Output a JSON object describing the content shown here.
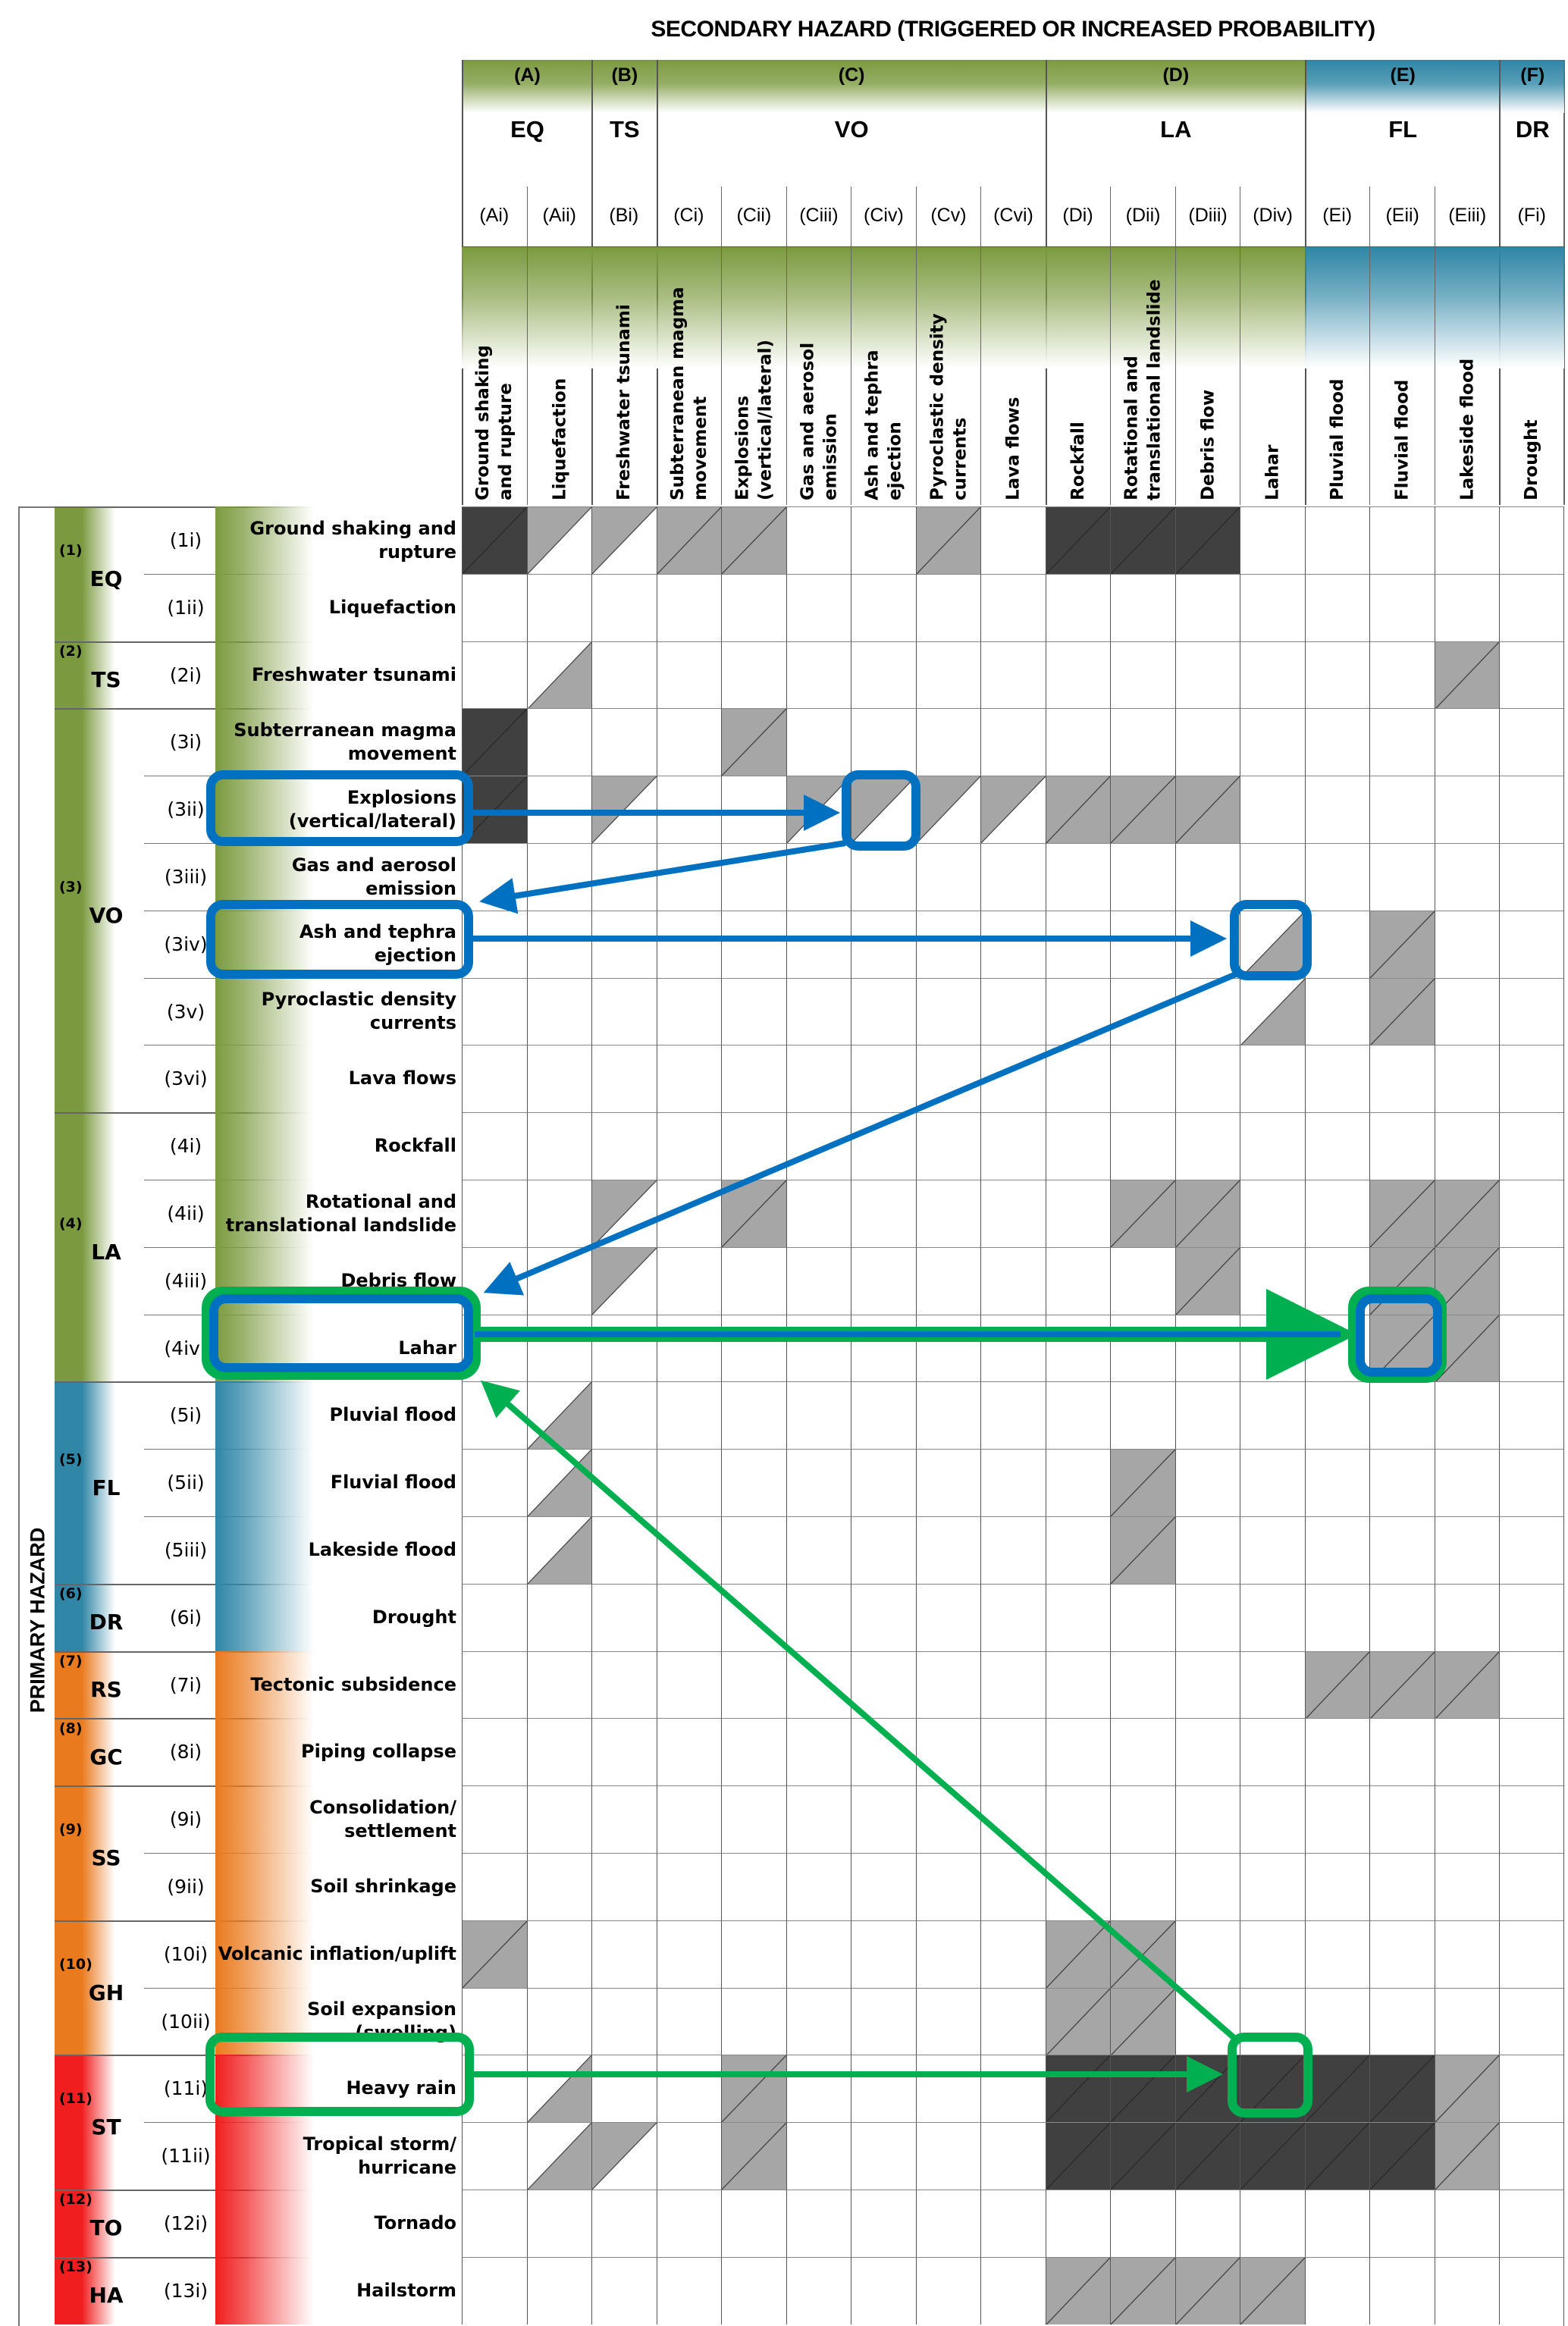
{
  "title": "SECONDARY HAZARD (TRIGGERED OR INCREASED PROBABILITY)",
  "primary_label": "PRIMARY HAZARD",
  "colors": {
    "green": "#7b9a3f",
    "blue": "#2f86a6",
    "orange": "#ea7a1e",
    "red": "#f01e1e",
    "grey": "#a6a6a6",
    "dark": "#404040",
    "highlight_blue": "#0070c0",
    "highlight_green": "#00b050"
  },
  "cell_legend": {
    "0": "none",
    "G": "grey both halves",
    "D": "dark both halves",
    "U": "grey upper-left half",
    "L": "grey lower-right half"
  },
  "secondary_groups": [
    {
      "code": "(A)",
      "abbr": "EQ",
      "color": "green",
      "cols": [
        {
          "id": "(Ai)",
          "name": "Ground shaking\nand rupture"
        },
        {
          "id": "(Aii)",
          "name": "Liquefaction"
        }
      ]
    },
    {
      "code": "(B)",
      "abbr": "TS",
      "color": "green",
      "cols": [
        {
          "id": "(Bi)",
          "name": "Freshwater tsunami"
        }
      ]
    },
    {
      "code": "(C)",
      "abbr": "VO",
      "color": "green",
      "cols": [
        {
          "id": "(Ci)",
          "name": "Subterranean magma\nmovement"
        },
        {
          "id": "(Cii)",
          "name": "Explosions\n(vertical/lateral)"
        },
        {
          "id": "(Ciii)",
          "name": "Gas and aerosol\nemission"
        },
        {
          "id": "(Civ)",
          "name": "Ash and tephra\nejection"
        },
        {
          "id": "(Cv)",
          "name": "Pyroclastic density\ncurrents"
        },
        {
          "id": "(Cvi)",
          "name": "Lava flows"
        }
      ]
    },
    {
      "code": "(D)",
      "abbr": "LA",
      "color": "green",
      "cols": [
        {
          "id": "(Di)",
          "name": "Rockfall"
        },
        {
          "id": "(Dii)",
          "name": "Rotational and\ntranslational landslide"
        },
        {
          "id": "(Diii)",
          "name": "Debris flow"
        },
        {
          "id": "(Div)",
          "name": "Lahar"
        }
      ]
    },
    {
      "code": "(E)",
      "abbr": "FL",
      "color": "blue",
      "cols": [
        {
          "id": "(Ei)",
          "name": "Pluvial flood"
        },
        {
          "id": "(Eii)",
          "name": "Fluvial flood"
        },
        {
          "id": "(Eiii)",
          "name": "Lakeside flood"
        }
      ]
    },
    {
      "code": "(F)",
      "abbr": "DR",
      "color": "blue",
      "cols": [
        {
          "id": "(Fi)",
          "name": "Drought"
        }
      ]
    }
  ],
  "primary_groups": [
    {
      "num": "(1)",
      "abbr": "EQ",
      "color": "green",
      "rows": [
        {
          "id": "(1i)",
          "label": "Ground shaking and\nrupture",
          "cells": "DUUGG00G0DDD00000"
        },
        {
          "id": "(1ii)",
          "label": "Liquefaction",
          "cells": "00000000000000000"
        }
      ]
    },
    {
      "num": "(2)",
      "abbr": "TS",
      "color": "green",
      "rows": [
        {
          "id": "(2i)",
          "label": "Freshwater tsunami",
          "cells": "0L0000000000000G0"
        }
      ]
    },
    {
      "num": "(3)",
      "abbr": "VO",
      "color": "green",
      "rows": [
        {
          "id": "(3i)",
          "label": "Subterranean magma\nmovement",
          "cells": "D000G000000000000"
        },
        {
          "id": "(3ii)",
          "label": "Explosions\n(vertical/lateral)",
          "cells": "D0U00UUUUGGG00000"
        },
        {
          "id": "(3iii)",
          "label": "Gas and aerosol\nemission",
          "cells": "00000000000000000"
        },
        {
          "id": "(3iv)",
          "label": "Ash and tephra ejection",
          "cells": "000000000000L0G00"
        },
        {
          "id": "(3v)",
          "label": "Pyroclastic density\ncurrents",
          "cells": "000000000000L0G00"
        },
        {
          "id": "(3vi)",
          "label": "Lava flows",
          "cells": "00000000000000000"
        }
      ]
    },
    {
      "num": "(4)",
      "abbr": "LA",
      "color": "green",
      "rows": [
        {
          "id": "(4i)",
          "label": "Rockfall",
          "cells": "00000000000000000"
        },
        {
          "id": "(4ii)",
          "label": "Rotational and\ntranslational landslide",
          "cells": "00U0G00000GG00GG0"
        },
        {
          "id": "(4iii)",
          "label": "Debris flow",
          "cells": "00U00000000G00GG0"
        },
        {
          "id": "(4iv)",
          "label": "Lahar",
          "cells": "00000000000000GG0"
        }
      ]
    },
    {
      "num": "(5)",
      "abbr": "FL",
      "color": "blue",
      "rows": [
        {
          "id": "(5i)",
          "label": "Pluvial flood",
          "cells": "0L000000000000000"
        },
        {
          "id": "(5ii)",
          "label": "Fluvial flood",
          "cells": "0L00000000G000000"
        },
        {
          "id": "(5iii)",
          "label": "Lakeside flood",
          "cells": "0L00000000G000000"
        }
      ]
    },
    {
      "num": "(6)",
      "abbr": "DR",
      "color": "blue",
      "rows": [
        {
          "id": "(6i)",
          "label": "Drought",
          "cells": "00000000000000000"
        }
      ]
    },
    {
      "num": "(7)",
      "abbr": "RS",
      "color": "orange",
      "rows": [
        {
          "id": "(7i)",
          "label": "Tectonic subsidence",
          "cells": "0000000000000GGG0"
        }
      ]
    },
    {
      "num": "(8)",
      "abbr": "GC",
      "color": "orange",
      "rows": [
        {
          "id": "(8i)",
          "label": "Piping collapse",
          "cells": "00000000000000000"
        }
      ]
    },
    {
      "num": "(9)",
      "abbr": "SS",
      "color": "orange",
      "rows": [
        {
          "id": "(9i)",
          "label": "Consolidation/\nsettlement",
          "cells": "00000000000000000"
        },
        {
          "id": "(9ii)",
          "label": "Soil shrinkage",
          "cells": "00000000000000000"
        }
      ]
    },
    {
      "num": "(10)",
      "abbr": "GH",
      "color": "orange",
      "rows": [
        {
          "id": "(10i)",
          "label": "Volcanic inflation/uplift",
          "cells": "G00000000GG000000"
        },
        {
          "id": "(10ii)",
          "label": "Soil expansion\n(swelling)",
          "cells": "000000000GG000000"
        }
      ]
    },
    {
      "num": "(11)",
      "abbr": "ST",
      "color": "red",
      "rows": [
        {
          "id": "(11i)",
          "label": "Heavy rain",
          "cells": "0L00G0000DDDDDDG0"
        },
        {
          "id": "(11ii)",
          "label": "Tropical storm/\nhurricane",
          "cells": "0LU0G0000DDDDDDG0"
        }
      ]
    },
    {
      "num": "(12)",
      "abbr": "TO",
      "color": "red",
      "rows": [
        {
          "id": "(12i)",
          "label": "Tornado",
          "cells": "00000000000000000"
        }
      ]
    },
    {
      "num": "(13)",
      "abbr": "HA",
      "color": "red",
      "rows": [
        {
          "id": "(13i)",
          "label": "Hailstorm",
          "cells": "000000000GGGG0000"
        }
      ]
    }
  ],
  "highlight_chains": [
    {
      "color": "blue",
      "steps": [
        "(3ii) Explosions (vertical/lateral)",
        "(3ii)x(Civ)",
        "(3iv) Ash and tephra ejection",
        "(3iv)x(Div)",
        "(4iv) Lahar",
        "(4iv)x(Eii)"
      ]
    },
    {
      "color": "green",
      "steps": [
        "(11i) Heavy rain",
        "(11i)x(Div)",
        "(4iv) Lahar",
        "(4iv)x(Eii)"
      ]
    }
  ]
}
